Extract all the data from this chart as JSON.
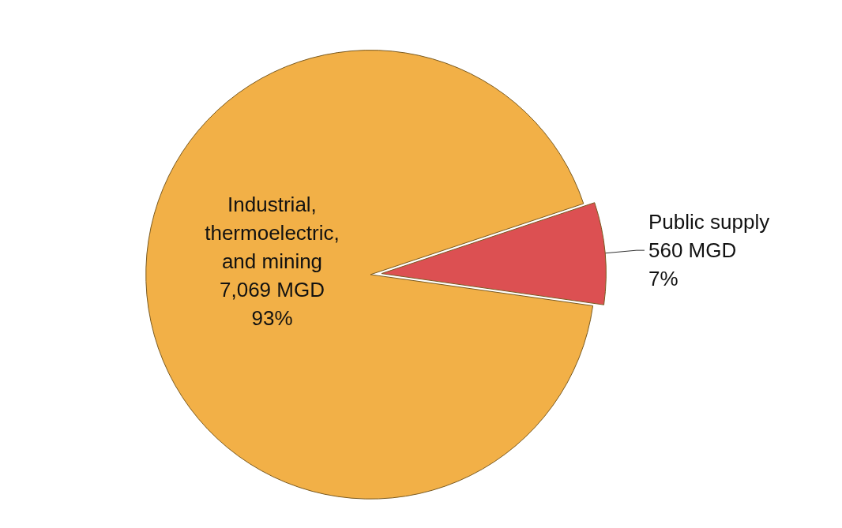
{
  "chart_data": {
    "type": "pie",
    "categories": [
      "Industrial, thermoelectric, and mining",
      "Public supply"
    ],
    "values": [
      7069,
      560
    ],
    "colors": [
      "#f2b047",
      "#dc5052"
    ],
    "value_labels": [
      "7,069 MGD\n93%",
      "560 MGD\n7%"
    ],
    "legend": false
  }
}
